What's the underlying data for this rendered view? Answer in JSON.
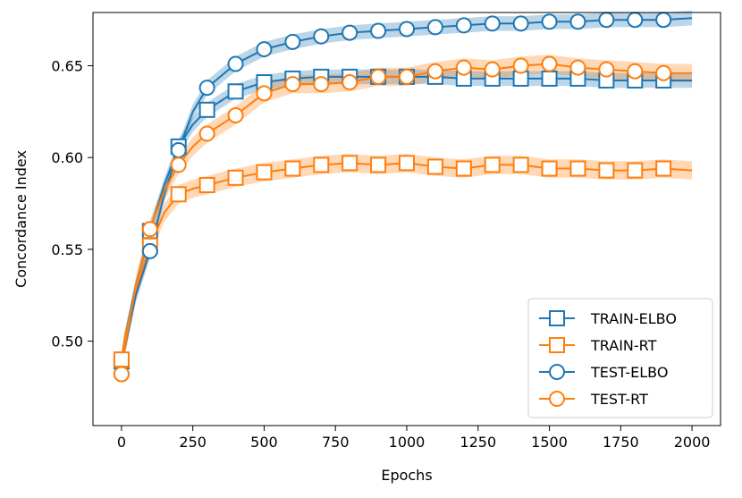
{
  "chart_data": {
    "type": "line",
    "xlabel": "Epochs",
    "ylabel": "Concordance Index",
    "xlim": [
      -100,
      2100
    ],
    "ylim": [
      0.454,
      0.679
    ],
    "xticks": [
      0,
      250,
      500,
      750,
      1000,
      1250,
      1500,
      1750,
      2000
    ],
    "yticks": [
      0.5,
      0.55,
      0.6,
      0.65
    ],
    "xtick_labels": [
      "0",
      "250",
      "500",
      "750",
      "1000",
      "1250",
      "1500",
      "1750",
      "2000"
    ],
    "ytick_labels": [
      "0.50",
      "0.55",
      "0.60",
      "0.65"
    ],
    "legend_position": "lower-right",
    "grid": false,
    "series": [
      {
        "name": "TRAIN-ELBO",
        "color": "#1f77b4",
        "marker": "square",
        "x": [
          0,
          10,
          50,
          100,
          150,
          200,
          250,
          300,
          400,
          500,
          600,
          700,
          800,
          900,
          1000,
          1100,
          1200,
          1300,
          1400,
          1500,
          1600,
          1700,
          1800,
          1900,
          2000
        ],
        "y": [
          0.489,
          0.5,
          0.53,
          0.56,
          0.585,
          0.606,
          0.618,
          0.626,
          0.636,
          0.641,
          0.643,
          0.644,
          0.644,
          0.644,
          0.644,
          0.644,
          0.643,
          0.643,
          0.643,
          0.643,
          0.643,
          0.642,
          0.642,
          0.642,
          0.642
        ],
        "band": 0.004,
        "marker_x": [
          0,
          100,
          200,
          300,
          400,
          500,
          600,
          700,
          800,
          900,
          1000,
          1100,
          1200,
          1300,
          1400,
          1500,
          1600,
          1700,
          1800,
          1900
        ]
      },
      {
        "name": "TRAIN-RT",
        "color": "#ff7f0e",
        "marker": "square",
        "x": [
          0,
          10,
          50,
          100,
          150,
          200,
          250,
          300,
          400,
          500,
          600,
          700,
          800,
          900,
          1000,
          1100,
          1200,
          1300,
          1400,
          1500,
          1600,
          1700,
          1800,
          1900,
          2000
        ],
        "y": [
          0.49,
          0.5,
          0.528,
          0.552,
          0.57,
          0.58,
          0.583,
          0.585,
          0.589,
          0.592,
          0.594,
          0.596,
          0.597,
          0.596,
          0.597,
          0.595,
          0.594,
          0.596,
          0.596,
          0.594,
          0.594,
          0.593,
          0.593,
          0.594,
          0.593
        ],
        "band": 0.005,
        "marker_x": [
          0,
          100,
          200,
          300,
          400,
          500,
          600,
          700,
          800,
          900,
          1000,
          1100,
          1200,
          1300,
          1400,
          1500,
          1600,
          1700,
          1800,
          1900
        ]
      },
      {
        "name": "TEST-ELBO",
        "color": "#1f77b4",
        "marker": "circle",
        "x": [
          0,
          10,
          50,
          100,
          150,
          200,
          250,
          300,
          400,
          500,
          600,
          700,
          800,
          900,
          1000,
          1100,
          1200,
          1300,
          1400,
          1500,
          1600,
          1700,
          1800,
          1900,
          2000
        ],
        "y": [
          0.482,
          0.495,
          0.525,
          0.549,
          0.58,
          0.604,
          0.625,
          0.638,
          0.651,
          0.659,
          0.663,
          0.666,
          0.668,
          0.669,
          0.67,
          0.671,
          0.672,
          0.673,
          0.673,
          0.674,
          0.674,
          0.675,
          0.675,
          0.675,
          0.676
        ],
        "band": 0.004,
        "marker_x": [
          0,
          100,
          200,
          300,
          400,
          500,
          600,
          700,
          800,
          900,
          1000,
          1100,
          1200,
          1300,
          1400,
          1500,
          1600,
          1700,
          1800,
          1900
        ]
      },
      {
        "name": "TEST-RT",
        "color": "#ff7f0e",
        "marker": "circle",
        "x": [
          0,
          10,
          50,
          100,
          150,
          200,
          250,
          300,
          400,
          500,
          600,
          700,
          800,
          900,
          1000,
          1100,
          1200,
          1300,
          1400,
          1500,
          1600,
          1700,
          1800,
          1900,
          2000
        ],
        "y": [
          0.482,
          0.495,
          0.53,
          0.561,
          0.582,
          0.596,
          0.606,
          0.613,
          0.623,
          0.635,
          0.64,
          0.64,
          0.641,
          0.644,
          0.644,
          0.647,
          0.649,
          0.648,
          0.65,
          0.651,
          0.649,
          0.648,
          0.647,
          0.646,
          0.646
        ],
        "band": 0.005,
        "marker_x": [
          0,
          100,
          200,
          300,
          400,
          500,
          600,
          700,
          800,
          900,
          1000,
          1100,
          1200,
          1300,
          1400,
          1500,
          1600,
          1700,
          1800,
          1900
        ]
      }
    ]
  }
}
